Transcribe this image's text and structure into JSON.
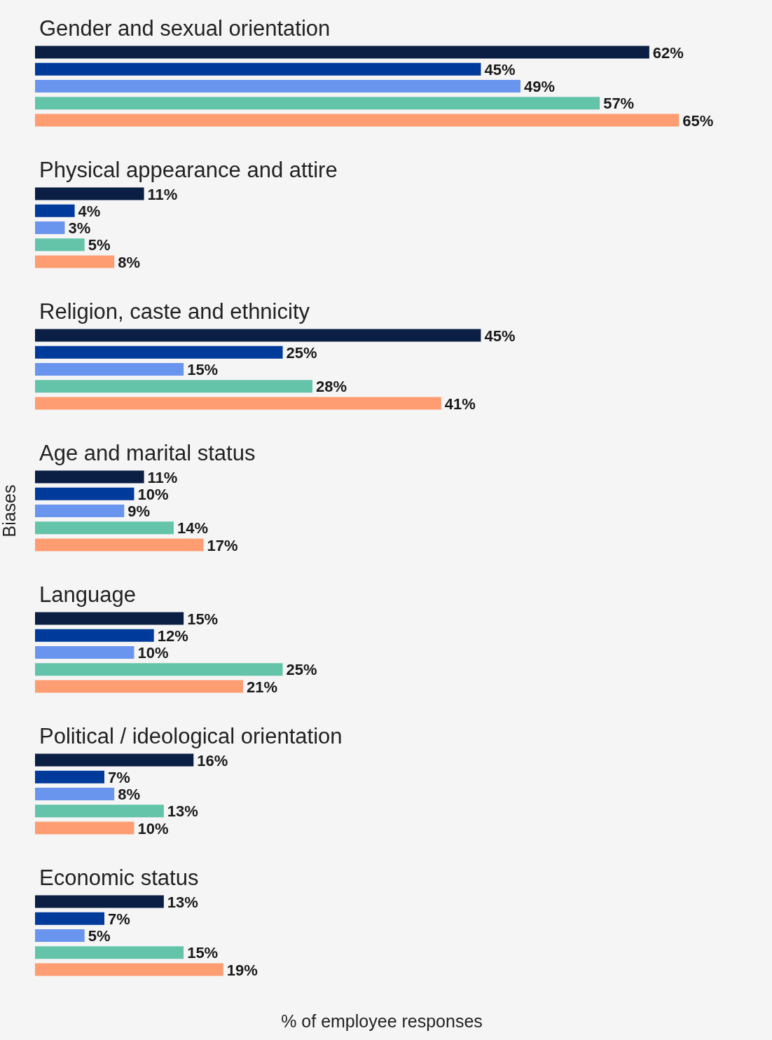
{
  "chart_data": {
    "type": "bar",
    "orientation": "horizontal",
    "xlabel": "% of employee responses",
    "ylabel": "Biases",
    "categories": [
      "Gender and sexual orientation",
      "Physical appearance and attire",
      "Religion, caste and ethnicity",
      "Age and marital status",
      "Language",
      "Political / ideological orientation",
      "Economic status"
    ],
    "series": [
      {
        "color": "#0b1f45",
        "values": [
          62,
          11,
          45,
          11,
          15,
          16,
          13
        ],
        "value_labels": [
          "62%",
          "11%",
          "45%",
          "11%",
          "15%",
          "16%",
          "13%"
        ]
      },
      {
        "color": "#003a9b",
        "values": [
          45,
          4,
          25,
          10,
          12,
          7,
          7
        ],
        "value_labels": [
          "45%",
          "4%",
          "25%",
          "10%",
          "12%",
          "7%",
          "7%"
        ]
      },
      {
        "color": "#6a95ee",
        "values": [
          49,
          3,
          15,
          9,
          10,
          8,
          5
        ],
        "value_labels": [
          "49%",
          "3%",
          "15%",
          "9%",
          "10%",
          "8%",
          "5%"
        ]
      },
      {
        "color": "#64c4aa",
        "values": [
          57,
          5,
          28,
          14,
          25,
          13,
          15
        ],
        "value_labels": [
          "57%",
          "5%",
          "28%",
          "14%",
          "25%",
          "13%",
          "15%"
        ]
      },
      {
        "color": "#ff9d72",
        "values": [
          65,
          8,
          41,
          17,
          21,
          10,
          19
        ],
        "value_labels": [
          "65%",
          "8%",
          "41%",
          "17%",
          "21%",
          "10%",
          "19%"
        ]
      }
    ],
    "grid": false,
    "legend": false,
    "tick_labels": "y"
  }
}
